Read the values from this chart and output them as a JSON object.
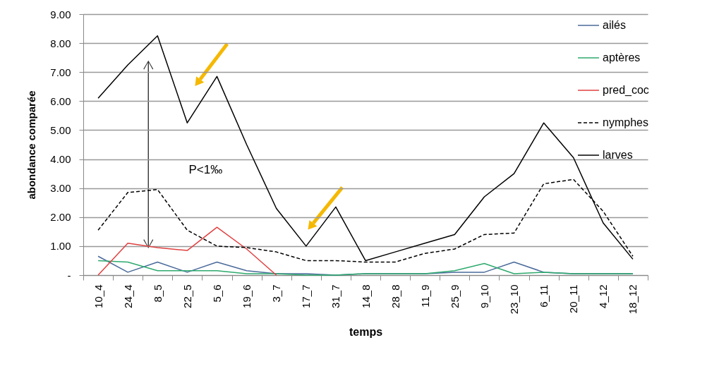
{
  "chart_data": {
    "type": "line",
    "xlabel": "temps",
    "ylabel": "abondance comparée",
    "categories": [
      "10_4",
      "24_4",
      "8_5",
      "22_5",
      "5_6",
      "19_6",
      "3_7",
      "17_7",
      "31_7",
      "14_8",
      "28_8",
      "11_9",
      "25_9",
      "9_10",
      "23_10",
      "6_11",
      "20_11",
      "4_12",
      "18_12"
    ],
    "ylim": [
      0,
      9
    ],
    "yticks": [
      {
        "value": 0,
        "label": "-"
      },
      {
        "value": 1,
        "label": "1.00"
      },
      {
        "value": 2,
        "label": "2.00"
      },
      {
        "value": 3,
        "label": "3.00"
      },
      {
        "value": 4,
        "label": "4.00"
      },
      {
        "value": 5,
        "label": "5.00"
      },
      {
        "value": 6,
        "label": "6.00"
      },
      {
        "value": 7,
        "label": "7.00"
      },
      {
        "value": 8,
        "label": "8.00"
      },
      {
        "value": 9,
        "label": "9.00"
      }
    ],
    "grid": "y",
    "legend": "right",
    "marker": "none",
    "series": [
      {
        "name": "ailés",
        "color": "#4a6a9a",
        "line_style": "solid",
        "values": [
          0.65,
          0.1,
          0.45,
          0.1,
          0.45,
          0.15,
          0.05,
          0.05,
          0,
          0.05,
          0.05,
          0.05,
          0.1,
          0.1,
          0.45,
          0.1,
          0.05,
          0.05,
          0.05
        ]
      },
      {
        "name": "aptères",
        "color": "#2eaa6e",
        "line_style": "solid",
        "values": [
          0.5,
          0.45,
          0.15,
          0.15,
          0.15,
          0.05,
          0.05,
          0,
          0,
          0.05,
          0.05,
          0.05,
          0.15,
          0.4,
          0.05,
          0.1,
          0.05,
          0.05,
          0.05
        ]
      },
      {
        "name": "pred_coc",
        "color": "#e04040",
        "line_style": "solid",
        "values": [
          0,
          1.1,
          0.95,
          0.85,
          1.65,
          0.9,
          0,
          null,
          null,
          null,
          null,
          null,
          null,
          null,
          null,
          null,
          null,
          null,
          null
        ]
      },
      {
        "name": "nymphes",
        "color": "#000000",
        "line_style": "dashed",
        "values": [
          1.55,
          2.85,
          2.95,
          1.55,
          1.0,
          0.95,
          0.8,
          0.5,
          0.5,
          0.45,
          0.45,
          0.75,
          0.9,
          1.4,
          1.45,
          3.15,
          3.3,
          2.2,
          0.65
        ]
      },
      {
        "name": "larves",
        "color": "#000000",
        "line_style": "solid",
        "values": [
          6.1,
          7.25,
          8.25,
          5.25,
          6.85,
          4.5,
          2.3,
          1.0,
          2.35,
          0.5,
          0.8,
          1.1,
          1.4,
          2.7,
          3.5,
          5.25,
          4.05,
          1.8,
          0.55
        ]
      }
    ],
    "annotations": [
      "P<1‰"
    ]
  }
}
